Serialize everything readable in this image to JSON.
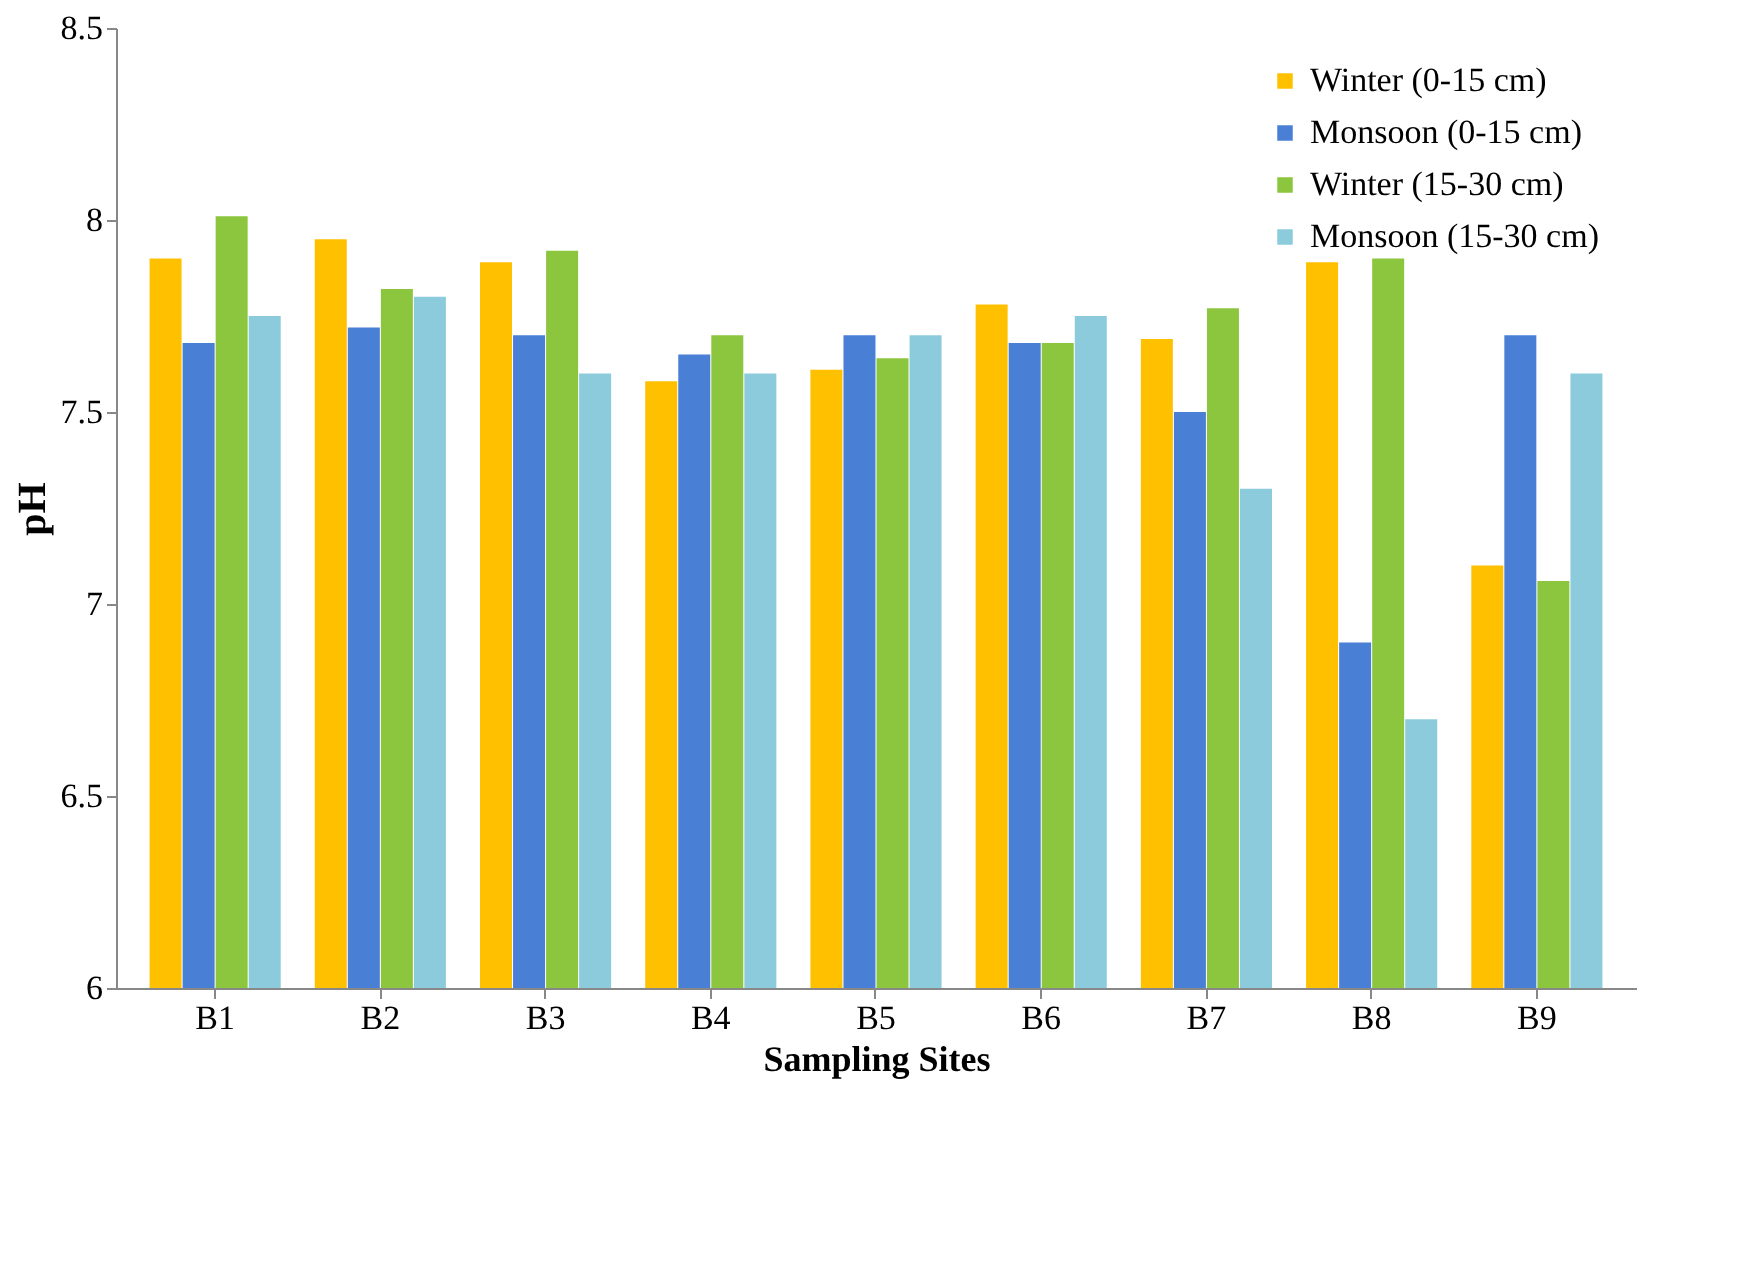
{
  "chart_data": {
    "type": "bar",
    "xlabel": "Sampling Sites",
    "ylabel": "pH",
    "categories": [
      "B1",
      "B2",
      "B3",
      "B4",
      "B5",
      "B6",
      "B7",
      "B8",
      "B9"
    ],
    "series": [
      {
        "name": "Winter (0-15 cm)",
        "color": "#ffc000",
        "values": [
          7.9,
          7.95,
          7.89,
          7.58,
          7.61,
          7.78,
          7.69,
          7.89,
          7.1
        ]
      },
      {
        "name": "Monsoon (0-15 cm)",
        "color": "#4a7fd6",
        "values": [
          7.68,
          7.72,
          7.7,
          7.65,
          7.7,
          7.68,
          7.5,
          6.9,
          7.7
        ]
      },
      {
        "name": "Winter (15-30 cm)",
        "color": "#8cc63f",
        "values": [
          8.01,
          7.82,
          7.92,
          7.7,
          7.64,
          7.68,
          7.77,
          7.9,
          7.06
        ]
      },
      {
        "name": "Monsoon (15-30 cm)",
        "color": "#8ccbdb",
        "values": [
          7.75,
          7.8,
          7.6,
          7.6,
          7.7,
          7.75,
          7.3,
          6.7,
          7.6
        ]
      }
    ],
    "ylim": [
      6,
      8.5
    ],
    "yticks": [
      6,
      6.5,
      7,
      7.5,
      8,
      8.5
    ],
    "grid": false,
    "legend": "top right"
  }
}
